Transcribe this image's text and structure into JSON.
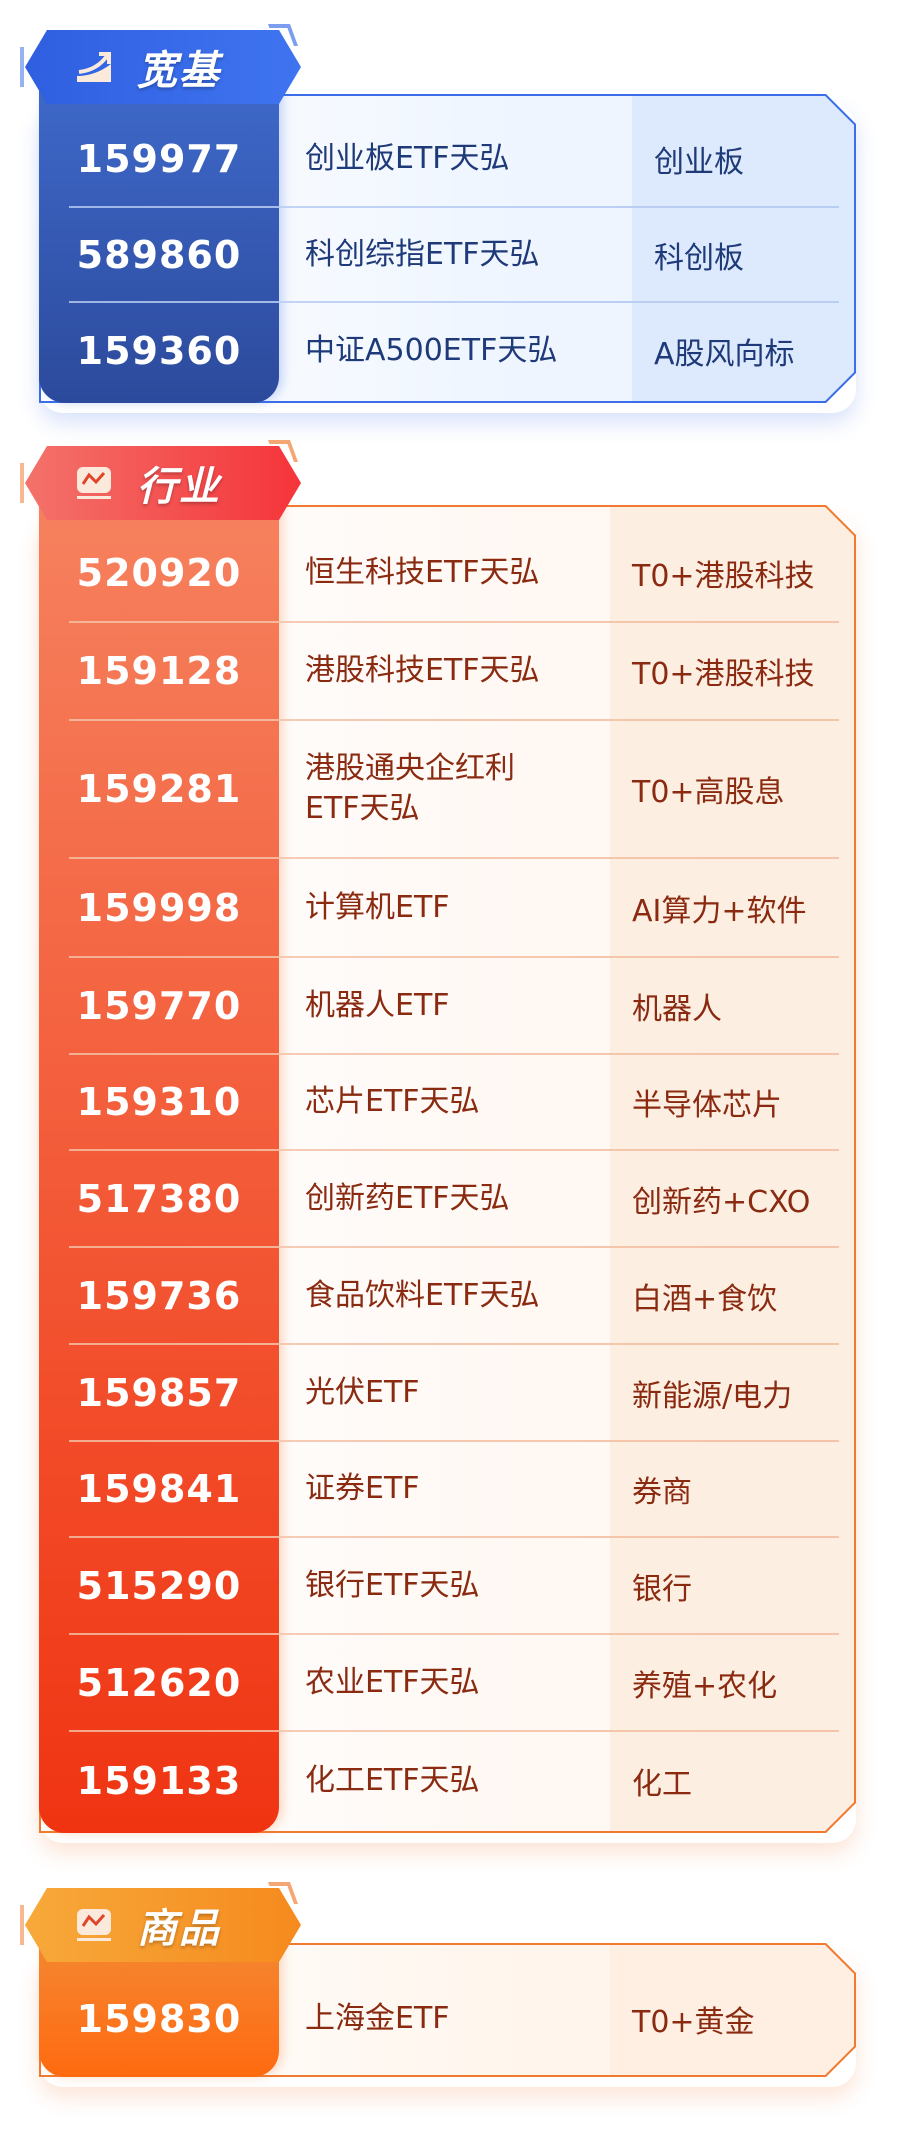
{
  "sections": [
    {
      "key": "broad",
      "title": "宽基",
      "icon": "trend-up-icon",
      "colors": {
        "accent": "#3b6ee8",
        "code_top": "#3f6acb",
        "code_bottom": "#2c4a9c",
        "card_bg": "#eef5ff",
        "right_bg": "#dde9fd",
        "text": "#1f3a78",
        "sep": "#b9cdf2"
      },
      "rows": [
        {
          "code": "159977",
          "name": "创业板ETF天弘",
          "tag": "创业板"
        },
        {
          "code": "589860",
          "name": "科创综指ETF天弘",
          "tag": "科创板"
        },
        {
          "code": "159360",
          "name": "中证A500ETF天弘",
          "tag": "A股风向标"
        }
      ]
    },
    {
      "key": "industry",
      "title": "行业",
      "icon": "line-chart-icon",
      "colors": {
        "accent": "#f07a30",
        "code_top": "#f6825f",
        "code_bottom": "#f03412",
        "card_bg": "#fff8f3",
        "right_bg": "#fdeee2",
        "text": "#8a2a10",
        "sep": "#f4c3a8"
      },
      "rows": [
        {
          "code": "520920",
          "name": "恒生科技ETF天弘",
          "tag": "T0+港股科技"
        },
        {
          "code": "159128",
          "name": "港股科技ETF天弘",
          "tag": "T0+港股科技"
        },
        {
          "code": "159281",
          "name": "港股通央企红利\nETF天弘",
          "tag": "T0+高股息"
        },
        {
          "code": "159998",
          "name": "计算机ETF",
          "tag": "AI算力+软件"
        },
        {
          "code": "159770",
          "name": "机器人ETF",
          "tag": "机器人"
        },
        {
          "code": "159310",
          "name": "芯片ETF天弘",
          "tag": "半导体芯片"
        },
        {
          "code": "517380",
          "name": "创新药ETF天弘",
          "tag": "创新药+CXO"
        },
        {
          "code": "159736",
          "name": "食品饮料ETF天弘",
          "tag": "白酒+食饮"
        },
        {
          "code": "159857",
          "name": "光伏ETF",
          "tag": "新能源/电力"
        },
        {
          "code": "159841",
          "name": "证券ETF",
          "tag": "券商"
        },
        {
          "code": "515290",
          "name": "银行ETF天弘",
          "tag": "银行"
        },
        {
          "code": "512620",
          "name": "农业ETF天弘",
          "tag": "养殖+农化"
        },
        {
          "code": "159133",
          "name": "化工ETF天弘",
          "tag": "化工"
        }
      ]
    },
    {
      "key": "commodity",
      "title": "商品",
      "icon": "line-chart-icon",
      "colors": {
        "accent": "#f07a30",
        "code_top": "#f38a35",
        "code_bottom": "#ff6a10",
        "card_bg": "#fff5ec",
        "right_bg": "#ffefe2",
        "text": "#8a2a10",
        "sep": "#f4c3a8"
      },
      "rows": [
        {
          "code": "159830",
          "name": "上海金ETF",
          "tag": "T0+黄金"
        }
      ]
    }
  ]
}
